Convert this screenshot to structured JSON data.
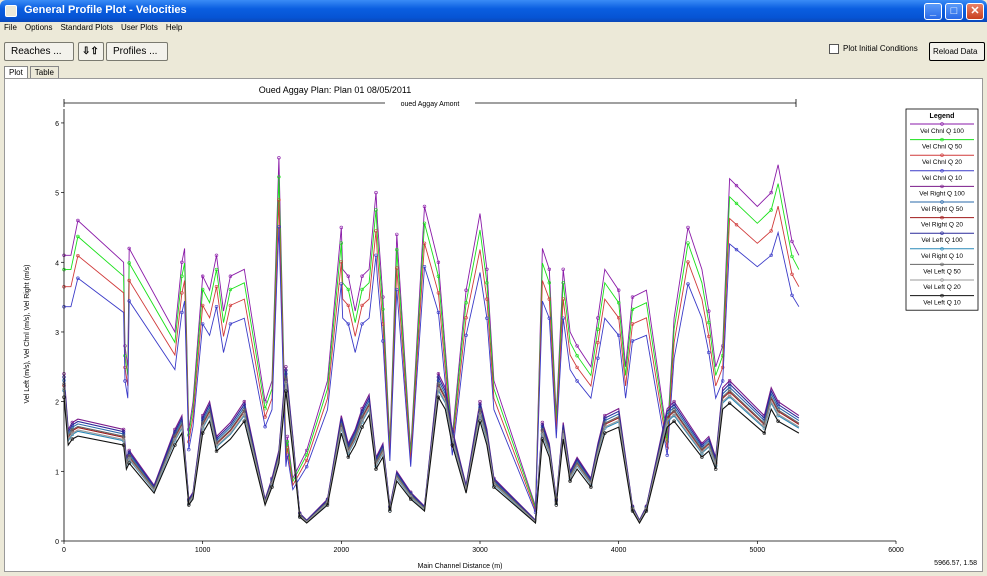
{
  "window": {
    "title": "General Profile Plot - Velocities"
  },
  "menu": [
    "File",
    "Options",
    "Standard Plots",
    "User Plots",
    "Help"
  ],
  "toolbar": {
    "reaches_label": "Reaches ...",
    "arrows_label": "⇩⇧",
    "profiles_label": "Profiles ...",
    "plot_initial_label": "Plot Initial Conditions",
    "reload_label": "Reload Data"
  },
  "tabs": [
    "Plot",
    "Table"
  ],
  "coord_readout": "5966.57, 1.58",
  "chart_data": {
    "type": "line",
    "title": "Oued Aggay      Plan: Plan 01    08/05/2011",
    "reach_label": "oued Aggay Amont",
    "xlabel": "Main Channel Distance (m)",
    "ylabel": "Vel Left (m/s), Vel Chnl (m/s), Vel Right (m/s)",
    "xlim": [
      0,
      6000
    ],
    "ylim": [
      0,
      6.2
    ],
    "xticks": [
      0,
      1000,
      2000,
      3000,
      4000,
      5000,
      6000
    ],
    "yticks": [
      0,
      1,
      2,
      3,
      4,
      5,
      6
    ],
    "legend_title": "Legend",
    "legend_position": "top-right",
    "series": [
      {
        "name": "Vel Chnl Q 100",
        "color": "#8a1aa8",
        "group": "chnl",
        "scale": 1.0
      },
      {
        "name": "Vel Chnl Q 50",
        "color": "#19e019",
        "group": "chnl",
        "scale": 0.95
      },
      {
        "name": "Vel Chnl Q 20",
        "color": "#d03a3a",
        "group": "chnl",
        "scale": 0.89
      },
      {
        "name": "Vel Chnl Q 10",
        "color": "#3a3ac8",
        "group": "chnl",
        "scale": 0.82
      },
      {
        "name": "Vel Right Q 100",
        "color": "#7a1a8a",
        "group": "bank",
        "scale": 1.0
      },
      {
        "name": "Vel Right Q 50",
        "color": "#2a6aaa",
        "group": "bank",
        "scale": 0.96
      },
      {
        "name": "Vel Right Q 20",
        "color": "#a01a1a",
        "group": "bank",
        "scale": 0.93
      },
      {
        "name": "Vel Left Q 100",
        "color": "#2a2a9a",
        "group": "bank",
        "scale": 0.98
      },
      {
        "name": "Vel Right Q 10",
        "color": "#2a8ab8",
        "group": "bank",
        "scale": 0.9
      },
      {
        "name": "Vel Left Q 50",
        "color": "#666666",
        "group": "bank",
        "scale": 0.94
      },
      {
        "name": "Vel Left Q 20",
        "color": "#999999",
        "group": "bank",
        "scale": 0.91
      },
      {
        "name": "Vel Left Q 10",
        "color": "#111111",
        "group": "bank",
        "scale": 0.86
      }
    ],
    "profile_chnl": {
      "x": [
        0,
        50,
        100,
        430,
        440,
        460,
        470,
        800,
        850,
        870,
        900,
        930,
        1000,
        1050,
        1100,
        1150,
        1200,
        1300,
        1450,
        1500,
        1550,
        1600,
        1610,
        1650,
        1750,
        1900,
        2000,
        2010,
        2050,
        2100,
        2150,
        2200,
        2250,
        2260,
        2300,
        2350,
        2400,
        2500,
        2600,
        2650,
        2700,
        2800,
        2900,
        3000,
        3050,
        3100,
        3400,
        3450,
        3500,
        3550,
        3600,
        3650,
        3700,
        3800,
        3850,
        3900,
        4000,
        4050,
        4100,
        4200,
        4350,
        4400,
        4500,
        4600,
        4650,
        4700,
        4750,
        4800,
        4850,
        5000,
        5100,
        5150,
        5250,
        5300
      ],
      "y": [
        4.1,
        4.1,
        4.6,
        4.0,
        2.8,
        2.5,
        4.2,
        3.0,
        4.0,
        4.2,
        1.6,
        2.0,
        3.8,
        3.6,
        4.1,
        3.3,
        3.8,
        3.9,
        2.0,
        2.3,
        5.5,
        1.3,
        1.5,
        0.9,
        1.3,
        2.3,
        4.5,
        3.9,
        3.8,
        3.3,
        3.8,
        3.9,
        5.0,
        4.6,
        3.5,
        1.4,
        4.4,
        1.3,
        4.8,
        4.4,
        4.0,
        1.5,
        3.6,
        4.7,
        3.9,
        2.3,
        0.5,
        4.2,
        3.9,
        1.8,
        3.9,
        3.0,
        2.8,
        2.5,
        3.2,
        3.9,
        3.6,
        2.5,
        3.5,
        3.6,
        1.5,
        3.2,
        4.5,
        3.9,
        3.3,
        2.5,
        2.8,
        5.2,
        5.1,
        4.8,
        5.0,
        5.4,
        4.3,
        4.1
      ]
    },
    "profile_bank": {
      "x": [
        0,
        30,
        60,
        100,
        430,
        450,
        470,
        650,
        800,
        850,
        900,
        930,
        1000,
        1050,
        1100,
        1200,
        1300,
        1450,
        1500,
        1550,
        1600,
        1650,
        1700,
        1750,
        1900,
        2000,
        2050,
        2100,
        2150,
        2200,
        2250,
        2300,
        2350,
        2400,
        2500,
        2600,
        2700,
        2750,
        2800,
        2900,
        3000,
        3050,
        3100,
        3400,
        3450,
        3500,
        3550,
        3600,
        3650,
        3700,
        3800,
        3850,
        3900,
        4000,
        4100,
        4150,
        4200,
        4350,
        4400,
        4500,
        4600,
        4650,
        4700,
        4750,
        4800,
        5000,
        5050,
        5100,
        5150,
        5300
      ],
      "y": [
        2.4,
        1.6,
        1.7,
        1.75,
        1.6,
        1.2,
        1.3,
        0.8,
        1.6,
        1.8,
        0.6,
        0.7,
        1.8,
        2.0,
        1.5,
        1.7,
        2.0,
        0.6,
        0.9,
        1.3,
        2.5,
        1.5,
        0.4,
        0.3,
        0.6,
        1.8,
        1.4,
        1.6,
        1.9,
        2.1,
        1.2,
        1.4,
        0.5,
        1.0,
        0.7,
        0.5,
        2.4,
        2.2,
        1.6,
        0.8,
        2.0,
        1.6,
        0.9,
        0.3,
        1.7,
        1.4,
        0.6,
        1.7,
        1.0,
        1.2,
        0.9,
        1.4,
        1.8,
        1.9,
        0.5,
        0.3,
        0.5,
        1.9,
        2.0,
        1.7,
        1.4,
        1.5,
        1.2,
        2.2,
        2.3,
        1.9,
        1.8,
        2.2,
        2.0,
        1.8
      ]
    }
  }
}
